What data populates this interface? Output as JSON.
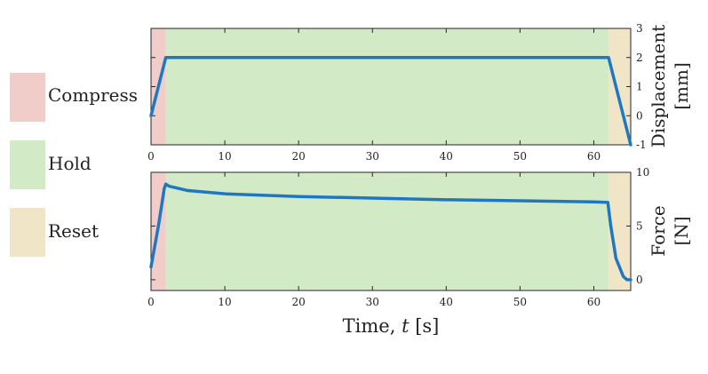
{
  "chart_data": [
    {
      "type": "line",
      "ylabel_line1": "Displacement",
      "ylabel_line2": "[mm]",
      "xlim": [
        0,
        65
      ],
      "ylim": [
        -1,
        3
      ],
      "xticks": [
        0,
        10,
        20,
        30,
        40,
        50,
        60
      ],
      "yticks": [
        -1,
        0,
        1,
        2,
        3
      ],
      "x_tick_labels": [
        "0",
        "10",
        "20",
        "30",
        "40",
        "50",
        "60"
      ],
      "y_tick_labels": [
        "-1",
        "0",
        "1",
        "2",
        "3"
      ],
      "series": [
        {
          "color": "#1f77c4",
          "x": [
            0,
            2,
            62,
            65
          ],
          "y": [
            0,
            2,
            2,
            -1
          ]
        }
      ]
    },
    {
      "type": "line",
      "xlabel": "Time, t [s]",
      "ylabel_line1": "Force",
      "ylabel_line2": "[N]",
      "xlim": [
        0,
        65
      ],
      "ylim": [
        -1,
        10
      ],
      "xticks": [
        0,
        10,
        20,
        30,
        40,
        50,
        60
      ],
      "yticks": [
        0,
        5,
        10
      ],
      "x_tick_labels": [
        "0",
        "10",
        "20",
        "30",
        "40",
        "50",
        "60"
      ],
      "y_tick_labels": [
        "0",
        "5",
        "10"
      ],
      "series": [
        {
          "color": "#1f77c4",
          "x": [
            0,
            1,
            1.8,
            2,
            2.5,
            5,
            10,
            20,
            30,
            40,
            50,
            60,
            61.9,
            62.3,
            63,
            64,
            64.5,
            65
          ],
          "y": [
            1.2,
            5,
            8.5,
            8.9,
            8.7,
            8.3,
            8.0,
            7.75,
            7.6,
            7.45,
            7.35,
            7.25,
            7.2,
            5.0,
            2.0,
            0.3,
            0,
            0
          ]
        }
      ]
    }
  ],
  "phases": [
    {
      "label": "Compress",
      "start": 0,
      "end": 2,
      "color": "#f0cdc9"
    },
    {
      "label": "Hold",
      "start": 2,
      "end": 62,
      "color": "#d2eac5"
    },
    {
      "label": "Reset",
      "start": 62,
      "end": 65,
      "color": "#f0e6c7"
    }
  ],
  "legend": {
    "items": [
      "Compress",
      "Hold",
      "Reset"
    ]
  },
  "xlabel_text": "Time, ",
  "xlabel_var": "t",
  "xlabel_unit": " [s]"
}
